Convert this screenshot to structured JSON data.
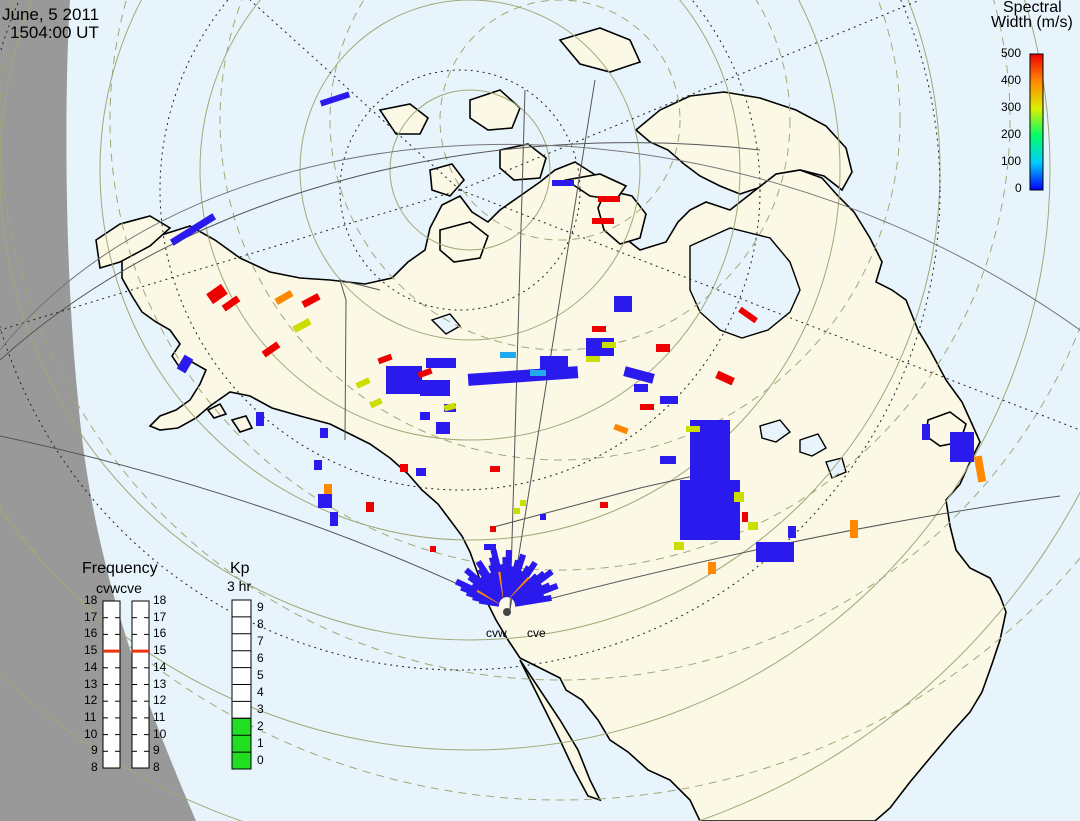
{
  "header": {
    "date": "June, 5 2011",
    "time": "1504:00 UT"
  },
  "colorbar": {
    "title_line1": "Spectral",
    "title_line2": "Width (m/s)",
    "ticks": [
      "500",
      "400",
      "300",
      "200",
      "100",
      "0"
    ],
    "range": [
      0,
      500
    ]
  },
  "frequency_panel": {
    "title": "Frequency",
    "radar_labels": "cvwcve",
    "left_ticks": [
      "18",
      "17",
      "16",
      "15",
      "14",
      "13",
      "12",
      "11",
      "10",
      "9",
      "8"
    ],
    "right_ticks": [
      "18",
      "17",
      "16",
      "15",
      "14",
      "13",
      "12",
      "11",
      "10",
      "9",
      "8"
    ],
    "cvw_frequency": 15,
    "cve_frequency": 15,
    "range": [
      8,
      18
    ]
  },
  "kp_panel": {
    "title": "Kp",
    "subtitle": "3 hr",
    "ticks": [
      "9",
      "8",
      "7",
      "6",
      "5",
      "4",
      "3",
      "2",
      "1",
      "0"
    ],
    "value": 3
  },
  "radar_sites": {
    "west": "cvw",
    "east": "cve"
  },
  "colors": {
    "night_shading": "#999999",
    "ocean": "#e8f4fc",
    "land": "#fbf8e6",
    "coastline": "#000000",
    "kp_fill": "#22dd22",
    "frequency_marker": "#ee3311"
  }
}
